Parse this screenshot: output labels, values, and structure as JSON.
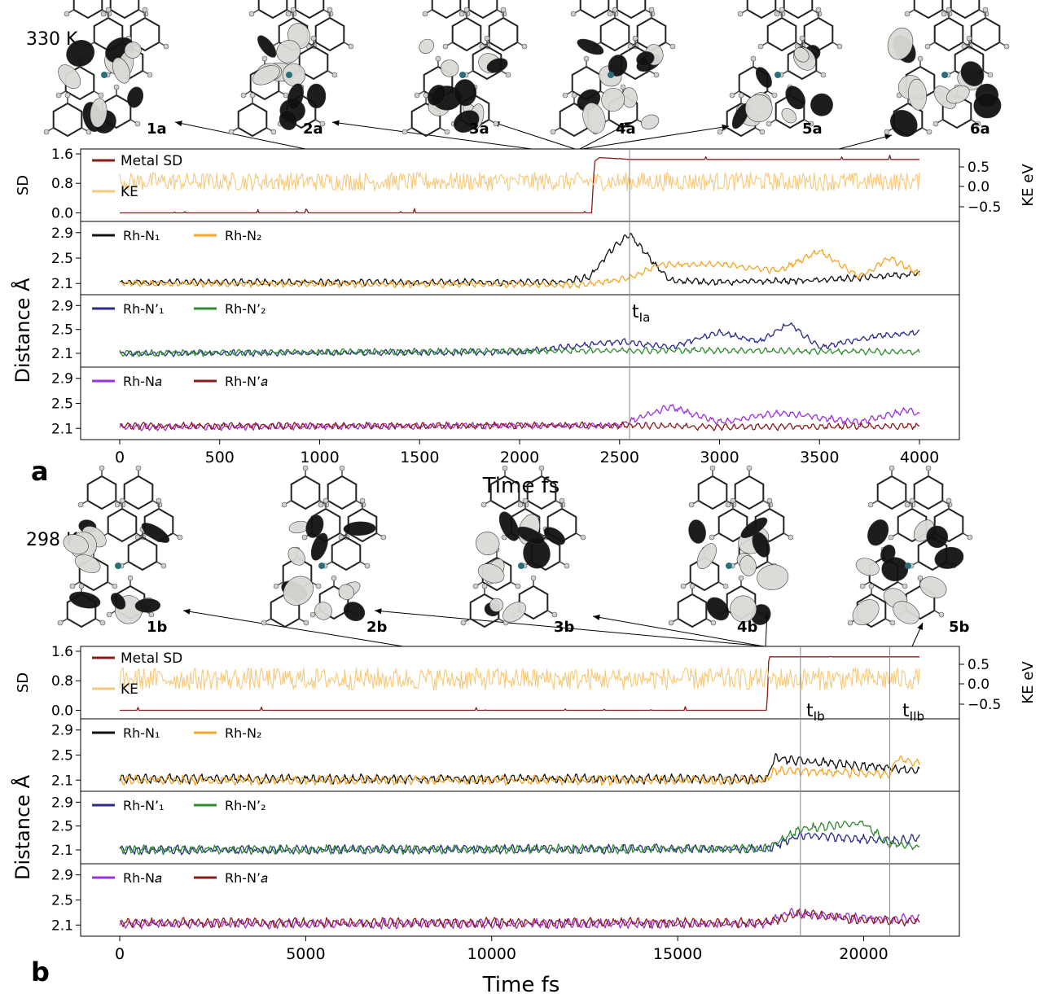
{
  "colors": {
    "metal_sd": "#8b1a1a",
    "ke": "#f7c97a",
    "rh_n1": "#111111",
    "rh_n2": "#f4a62a",
    "rh_n1p": "#2a2a8c",
    "rh_n2p": "#2e8b2e",
    "rh_na": "#9b30e0",
    "rh_nap": "#8b1a1a",
    "orbital_dark": "#111111",
    "orbital_light": "#dcdad6"
  },
  "chart_data": [
    {
      "type": "line",
      "panel": "a",
      "temperature": "330 K",
      "structures": [
        "1a",
        "2a",
        "3a",
        "4a",
        "5a",
        "6a"
      ],
      "xlabel": "Time fs",
      "xlim": [
        0,
        4000
      ],
      "xticks": [
        0,
        500,
        1000,
        1500,
        2000,
        2500,
        3000,
        3500,
        4000
      ],
      "markers": [
        {
          "label": "t",
          "sub": "Ia",
          "x": 2550
        }
      ],
      "subplots": [
        {
          "ylabel": "SD",
          "ylim": [
            -0.1,
            1.6
          ],
          "yticks": [
            "0.0",
            "0.8",
            "1.6"
          ],
          "y2label": "KE eV",
          "y2ticks": [
            "0.5",
            "0.0",
            "−0.5"
          ],
          "legend": [
            "Metal SD",
            "KE"
          ],
          "series": [
            {
              "name": "Metal SD",
              "points": [
                [
                  0,
                  0.0
                ],
                [
                  2360,
                  0.0
                ],
                [
                  2375,
                  1.4
                ],
                [
                  2400,
                  1.5
                ],
                [
                  2550,
                  1.45
                ],
                [
                  4000,
                  1.45
                ]
              ]
            },
            {
              "name": "KE",
              "mean": 0.85,
              "amplitude": 0.25
            }
          ]
        },
        {
          "ylim": [
            2.0,
            3.0
          ],
          "yticks": [
            "2.1",
            "2.5",
            "2.9"
          ],
          "legend": [
            "Rh-N₁",
            "Rh-N₂"
          ],
          "series": [
            {
              "name": "Rh-N₁",
              "points": [
                [
                  0,
                  2.12
                ],
                [
                  2200,
                  2.12
                ],
                [
                  2350,
                  2.2
                ],
                [
                  2450,
                  2.6
                ],
                [
                  2550,
                  2.88
                ],
                [
                  2650,
                  2.5
                ],
                [
                  2750,
                  2.15
                ],
                [
                  3000,
                  2.12
                ],
                [
                  3500,
                  2.15
                ],
                [
                  4000,
                  2.25
                ]
              ]
            },
            {
              "name": "Rh-N₂",
              "points": [
                [
                  0,
                  2.1
                ],
                [
                  2300,
                  2.08
                ],
                [
                  2550,
                  2.18
                ],
                [
                  2700,
                  2.4
                ],
                [
                  3000,
                  2.4
                ],
                [
                  3300,
                  2.3
                ],
                [
                  3500,
                  2.62
                ],
                [
                  3700,
                  2.2
                ],
                [
                  3850,
                  2.5
                ],
                [
                  4000,
                  2.25
                ]
              ]
            }
          ]
        },
        {
          "ylim": [
            1.95,
            3.0
          ],
          "yticks": [
            "2.1",
            "2.5",
            "2.9"
          ],
          "legend": [
            "Rh-N’₁",
            "Rh-N’₂"
          ],
          "series": [
            {
              "name": "Rh-N’₁",
              "points": [
                [
                  0,
                  2.1
                ],
                [
                  2000,
                  2.12
                ],
                [
                  2500,
                  2.3
                ],
                [
                  2750,
                  2.2
                ],
                [
                  3000,
                  2.45
                ],
                [
                  3200,
                  2.3
                ],
                [
                  3350,
                  2.6
                ],
                [
                  3500,
                  2.2
                ],
                [
                  3800,
                  2.4
                ],
                [
                  4000,
                  2.45
                ]
              ]
            },
            {
              "name": "Rh-N’₂",
              "points": [
                [
                  0,
                  2.1
                ],
                [
                  2500,
                  2.15
                ],
                [
                  3000,
                  2.15
                ],
                [
                  4000,
                  2.12
                ]
              ]
            }
          ]
        },
        {
          "ylim": [
            2.0,
            3.0
          ],
          "yticks": [
            "2.1",
            "2.5",
            "2.9"
          ],
          "legend": [
            "Rh-N𝑎",
            "Rh-N’𝑎"
          ],
          "series": [
            {
              "name": "Rh-N𝑎",
              "points": [
                [
                  0,
                  2.12
                ],
                [
                  2500,
                  2.15
                ],
                [
                  2750,
                  2.45
                ],
                [
                  3000,
                  2.2
                ],
                [
                  3300,
                  2.35
                ],
                [
                  3700,
                  2.2
                ],
                [
                  3950,
                  2.4
                ],
                [
                  4000,
                  2.3
                ]
              ]
            },
            {
              "name": "Rh-N’𝑎",
              "points": [
                [
                  0,
                  2.14
                ],
                [
                  2500,
                  2.15
                ],
                [
                  3000,
                  2.12
                ],
                [
                  4000,
                  2.14
                ]
              ]
            }
          ]
        }
      ]
    },
    {
      "type": "line",
      "panel": "b",
      "temperature": "298 K",
      "structures": [
        "1b",
        "2b",
        "3b",
        "4b",
        "5b"
      ],
      "xlabel": "Time fs",
      "xlim": [
        0,
        21500
      ],
      "xticks": [
        0,
        5000,
        10000,
        15000,
        20000
      ],
      "markers": [
        {
          "label": "t",
          "sub": "Ib",
          "x": 18300
        },
        {
          "label": "t",
          "sub": "IIb",
          "x": 20700
        }
      ],
      "subplots": [
        {
          "ylabel": "SD",
          "ylim": [
            -0.1,
            1.6
          ],
          "yticks": [
            "0.0",
            "0.8",
            "1.6"
          ],
          "y2label": "KE eV",
          "y2ticks": [
            "0.5",
            "0.0",
            "−0.5"
          ],
          "legend": [
            "Metal SD",
            "KE"
          ],
          "series": [
            {
              "name": "Metal SD",
              "points": [
                [
                  0,
                  0.0
                ],
                [
                  17400,
                  0.0
                ],
                [
                  17450,
                  1.45
                ],
                [
                  21500,
                  1.45
                ]
              ]
            },
            {
              "name": "KE",
              "mean": 0.85,
              "amplitude": 0.3
            }
          ]
        },
        {
          "ylim": [
            2.0,
            3.0
          ],
          "yticks": [
            "2.1",
            "2.5",
            "2.9"
          ],
          "legend": [
            "Rh-N₁",
            "Rh-N₂"
          ],
          "series": [
            {
              "name": "Rh-N₁",
              "points": [
                [
                  0,
                  2.12
                ],
                [
                  17400,
                  2.12
                ],
                [
                  17600,
                  2.45
                ],
                [
                  18300,
                  2.4
                ],
                [
                  20700,
                  2.3
                ],
                [
                  21500,
                  2.25
                ]
              ]
            },
            {
              "name": "Rh-N₂",
              "points": [
                [
                  0,
                  2.1
                ],
                [
                  17400,
                  2.1
                ],
                [
                  17600,
                  2.25
                ],
                [
                  20700,
                  2.2
                ],
                [
                  20900,
                  2.45
                ],
                [
                  21500,
                  2.35
                ]
              ]
            }
          ]
        },
        {
          "ylim": [
            1.95,
            3.0
          ],
          "yticks": [
            "2.1",
            "2.5",
            "2.9"
          ],
          "legend": [
            "Rh-N’₁",
            "Rh-N’₂"
          ],
          "series": [
            {
              "name": "Rh-N’₁",
              "points": [
                [
                  0,
                  2.1
                ],
                [
                  17400,
                  2.12
                ],
                [
                  18300,
                  2.35
                ],
                [
                  20700,
                  2.25
                ],
                [
                  21500,
                  2.3
                ]
              ]
            },
            {
              "name": "Rh-N’₂",
              "points": [
                [
                  0,
                  2.1
                ],
                [
                  17400,
                  2.12
                ],
                [
                  18300,
                  2.45
                ],
                [
                  20000,
                  2.55
                ],
                [
                  20700,
                  2.2
                ],
                [
                  21500,
                  2.15
                ]
              ]
            }
          ]
        },
        {
          "ylim": [
            2.0,
            3.0
          ],
          "yticks": [
            "2.1",
            "2.5",
            "2.9"
          ],
          "legend": [
            "Rh-N𝑎",
            "Rh-N’𝑎"
          ],
          "series": [
            {
              "name": "Rh-N𝑎",
              "points": [
                [
                  0,
                  2.12
                ],
                [
                  17400,
                  2.12
                ],
                [
                  18000,
                  2.3
                ],
                [
                  20000,
                  2.2
                ],
                [
                  21500,
                  2.2
                ]
              ]
            },
            {
              "name": "Rh-N’𝑎",
              "points": [
                [
                  0,
                  2.14
                ],
                [
                  17400,
                  2.14
                ],
                [
                  18300,
                  2.28
                ],
                [
                  20000,
                  2.18
                ],
                [
                  21500,
                  2.15
                ]
              ]
            }
          ]
        }
      ]
    }
  ],
  "labels": {
    "panel_a": "a",
    "panel_b": "b",
    "distance_ylabel": "Distance Å"
  }
}
